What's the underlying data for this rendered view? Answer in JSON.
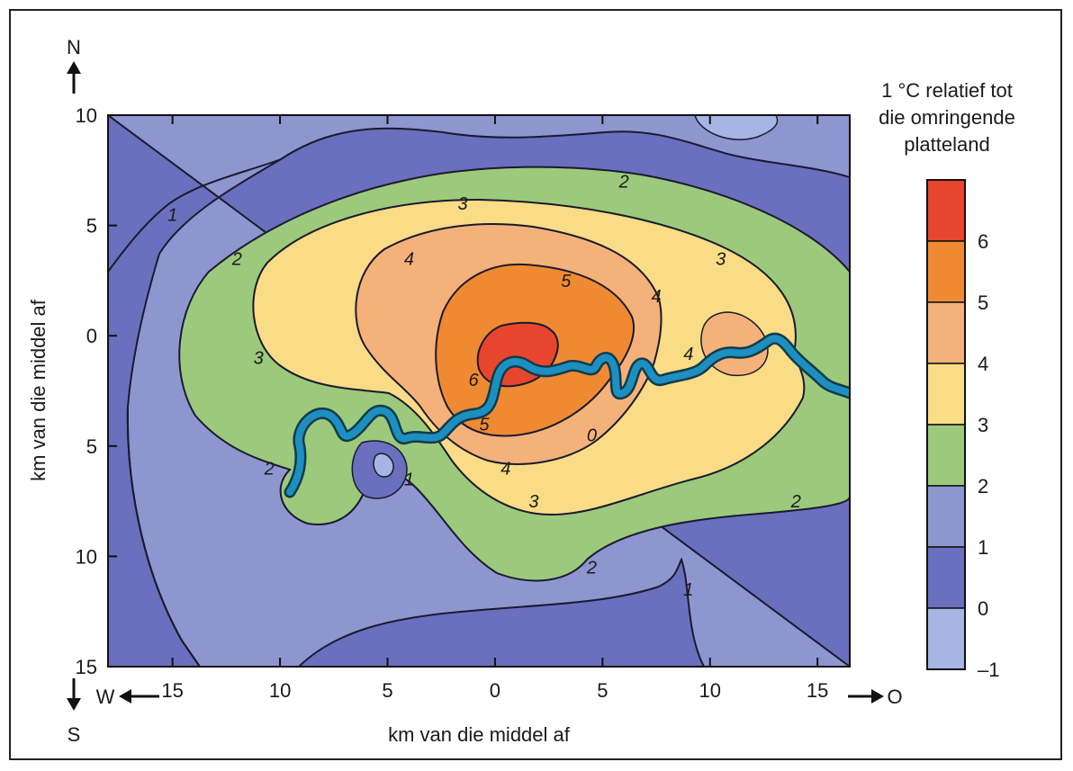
{
  "chart_data": {
    "type": "heatmap",
    "subtype": "contour-map",
    "title": "",
    "xlabel": "km van die middel af",
    "ylabel": "km van die middel af",
    "xlim": [
      -18,
      16.5
    ],
    "ylim": [
      15,
      -10
    ],
    "x_ticks": [
      -15,
      -10,
      -5,
      0,
      5,
      10,
      15
    ],
    "x_tick_labels": [
      "15",
      "10",
      "5",
      "0",
      "5",
      "10",
      "15"
    ],
    "y_ticks": [
      -10,
      -5,
      0,
      5,
      10,
      15
    ],
    "y_tick_labels": [
      "10",
      "5",
      "0",
      "5",
      "10",
      "15"
    ],
    "compass": {
      "north": "N",
      "south": "S",
      "west": "W",
      "east": "O"
    },
    "colorbar": {
      "title_lines": [
        "1 °C relatief tot",
        "die omringende",
        "platteland"
      ],
      "levels": [
        "6",
        "5",
        "4",
        "3",
        "2",
        "1",
        "0",
        "–1"
      ],
      "colors": [
        "#e8452f",
        "#ef8a33",
        "#f4b27a",
        "#f9dc85",
        "#9cc97c",
        "#8e96d0",
        "#6a6fbe",
        "#a6b5e4"
      ]
    },
    "contour_labels": [
      {
        "text": "1",
        "x": -15,
        "y": -5.5
      },
      {
        "text": "2",
        "x": -12,
        "y": -3.5
      },
      {
        "text": "2",
        "x": 6,
        "y": -7
      },
      {
        "text": "3",
        "x": -11,
        "y": 1
      },
      {
        "text": "3",
        "x": -1.5,
        "y": -6
      },
      {
        "text": "3",
        "x": 10.5,
        "y": -3.5
      },
      {
        "text": "4",
        "x": -4,
        "y": -3.5
      },
      {
        "text": "4",
        "x": 7.5,
        "y": -1.8
      },
      {
        "text": "4",
        "x": 9,
        "y": 0.8
      },
      {
        "text": "5",
        "x": 3.3,
        "y": -2.5
      },
      {
        "text": "6",
        "x": -1,
        "y": 2
      },
      {
        "text": "5",
        "x": -0.5,
        "y": 4
      },
      {
        "text": "4",
        "x": 0.5,
        "y": 6
      },
      {
        "text": "3",
        "x": 1.8,
        "y": 7.5
      },
      {
        "text": "0",
        "x": 4.5,
        "y": 4.5
      },
      {
        "text": "2",
        "x": -10.5,
        "y": 6
      },
      {
        "text": "2",
        "x": 4.5,
        "y": 10.5
      },
      {
        "text": "2",
        "x": 14,
        "y": 7.5
      },
      {
        "text": "1",
        "x": 9,
        "y": 11.5
      },
      {
        "text": "1",
        "x": -4,
        "y": 6.5
      }
    ],
    "fields": {
      "background": {
        "level": "1",
        "color": "#6a6fbe"
      },
      "zones": [
        {
          "level": "2",
          "color": "#8e96d0"
        },
        {
          "level": "3",
          "color": "#9cc97c"
        },
        {
          "level": "4",
          "color": "#f9dc85"
        },
        {
          "level": "5",
          "color": "#f4b27a"
        },
        {
          "level": "6",
          "color": "#ef8a33"
        },
        {
          "level": "6+",
          "color": "#e8452f"
        },
        {
          "level": "0",
          "color": "#a6b5e4"
        }
      ],
      "river_color": "#1d8fc0"
    },
    "grid": false
  }
}
